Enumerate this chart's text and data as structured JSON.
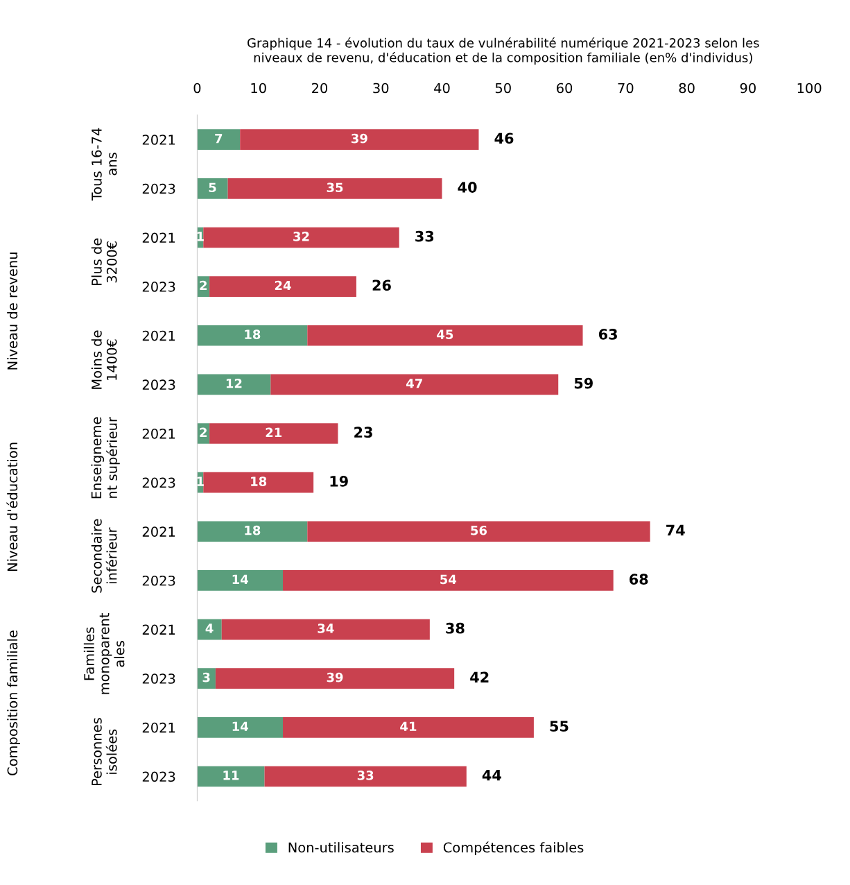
{
  "chart_data": {
    "type": "bar",
    "orientation": "horizontal",
    "stacked": true,
    "title": "Graphique 14 - évolution du taux de vulnérabilité numérique 2021-2023 selon les\nniveaux de revenu, d'éducation et de la composition familiale (en% d'individus)",
    "categories": [
      "2021",
      "2023",
      "2021",
      "2023",
      "2021",
      "2023",
      "2021",
      "2023",
      "2021",
      "2023",
      "2021",
      "2023",
      "2021",
      "2023"
    ],
    "series": [
      {
        "name": "Non-utilisateurs",
        "color": "#5a9e7c",
        "values": [
          7,
          5,
          1,
          2,
          18,
          12,
          2,
          1,
          18,
          14,
          4,
          3,
          14,
          11
        ]
      },
      {
        "name": "Compétences faibles",
        "color": "#c9414f",
        "values": [
          39,
          35,
          32,
          24,
          45,
          47,
          21,
          18,
          56,
          54,
          34,
          39,
          41,
          33
        ]
      }
    ],
    "totals": [
      "46",
      "40",
      "33",
      "26",
      "63",
      "59",
      "23",
      "19",
      "74",
      "68",
      "38",
      "42",
      "55",
      "44"
    ],
    "annotations": [
      "Tous 16-74\nans",
      "Plus de\n3200€",
      "Moins de\n1400€",
      "Enseigneme\nnt supérieur",
      "Secondaire\ninférieur",
      "Familles\nmonoparent\nales",
      "Personnes\nisolées",
      "Niveau de revenu",
      "Niveau d'éducation",
      "Composition familiale"
    ],
    "xlim": [
      0,
      100
    ],
    "xticks": [
      0,
      10,
      20,
      30,
      40,
      50,
      60,
      70,
      80,
      90,
      100
    ],
    "data_labels": true,
    "grid": false,
    "legend": "bottom"
  }
}
